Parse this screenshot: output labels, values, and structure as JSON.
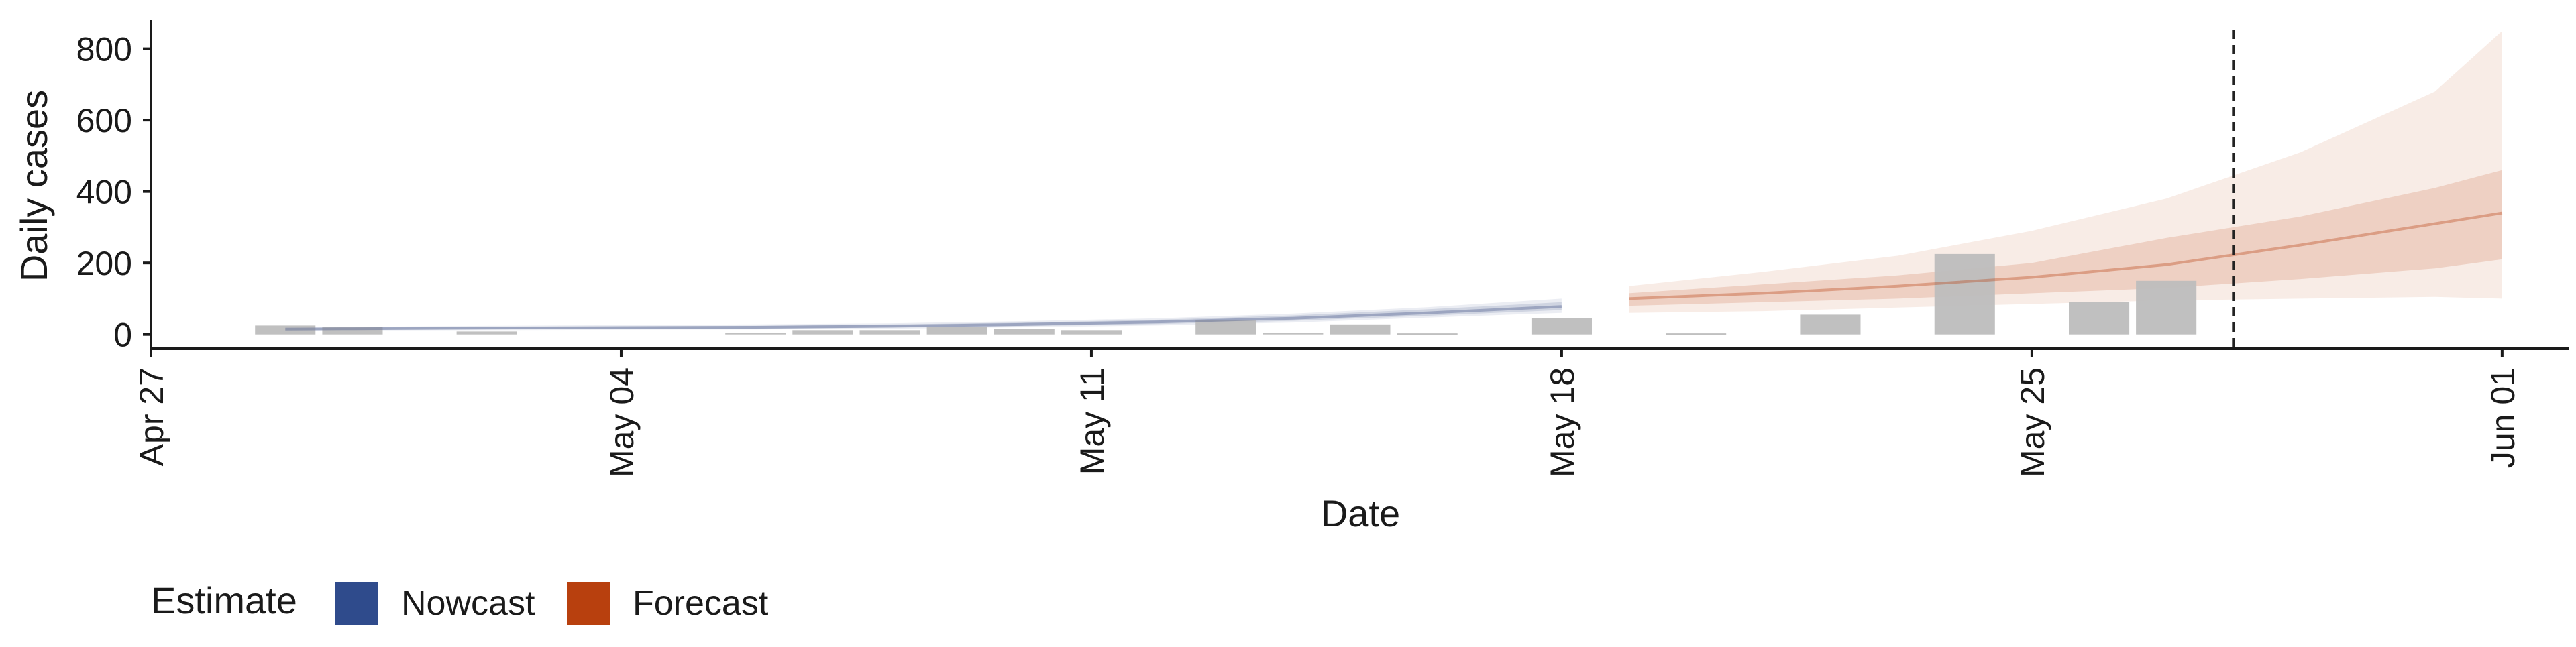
{
  "chart_data": {
    "type": "bar",
    "ylabel": "Daily cases",
    "xlabel": "Date",
    "ylim": [
      -40,
      880
    ],
    "xlim": [
      "2020-04-27",
      "2020-06-02"
    ],
    "yticks": [
      0,
      200,
      400,
      600,
      800
    ],
    "xticks": [
      {
        "date": "2020-04-27",
        "label": "Apr 27"
      },
      {
        "date": "2020-05-04",
        "label": "May 04"
      },
      {
        "date": "2020-05-11",
        "label": "May 11"
      },
      {
        "date": "2020-05-18",
        "label": "May 18"
      },
      {
        "date": "2020-05-25",
        "label": "May 25"
      },
      {
        "date": "2020-06-01",
        "label": "Jun 01"
      }
    ],
    "reference_line_date": "2020-05-28",
    "grid": false,
    "bars": [
      {
        "date": "2020-04-29",
        "value": 25
      },
      {
        "date": "2020-04-30",
        "value": 20
      },
      {
        "date": "2020-05-02",
        "value": 8
      },
      {
        "date": "2020-05-06",
        "value": 5
      },
      {
        "date": "2020-05-07",
        "value": 12
      },
      {
        "date": "2020-05-08",
        "value": 12
      },
      {
        "date": "2020-05-09",
        "value": 22
      },
      {
        "date": "2020-05-10",
        "value": 15
      },
      {
        "date": "2020-05-11",
        "value": 12
      },
      {
        "date": "2020-05-13",
        "value": 40
      },
      {
        "date": "2020-05-14",
        "value": 4
      },
      {
        "date": "2020-05-15",
        "value": 28
      },
      {
        "date": "2020-05-16",
        "value": 3
      },
      {
        "date": "2020-05-18",
        "value": 45
      },
      {
        "date": "2020-05-20",
        "value": 3
      },
      {
        "date": "2020-05-22",
        "value": 55
      },
      {
        "date": "2020-05-24",
        "value": 225
      },
      {
        "date": "2020-05-26",
        "value": 90
      },
      {
        "date": "2020-05-27",
        "value": 150
      }
    ],
    "series": [
      {
        "name": "Nowcast",
        "color": "#3c4e85",
        "dates": [
          "2020-04-29",
          "2020-04-30",
          "2020-05-02",
          "2020-05-04",
          "2020-05-06",
          "2020-05-08",
          "2020-05-10",
          "2020-05-12",
          "2020-05-14",
          "2020-05-16",
          "2020-05-18"
        ],
        "median": [
          15,
          16,
          18,
          19,
          20,
          23,
          28,
          35,
          45,
          60,
          78
        ],
        "inner_lower": [
          12,
          13,
          14,
          15,
          16,
          19,
          23,
          29,
          38,
          52,
          68
        ],
        "inner_upper": [
          18,
          19,
          21,
          23,
          24,
          28,
          33,
          41,
          53,
          70,
          90
        ],
        "outer_lower": [
          10,
          11,
          12,
          13,
          14,
          16,
          20,
          25,
          33,
          47,
          60
        ],
        "outer_upper": [
          20,
          21,
          24,
          26,
          28,
          31,
          37,
          45,
          58,
          76,
          100
        ]
      },
      {
        "name": "Forecast",
        "color": "#b8400e",
        "dates": [
          "2020-05-19",
          "2020-05-21",
          "2020-05-23",
          "2020-05-25",
          "2020-05-27",
          "2020-05-29",
          "2020-05-31",
          "2020-06-01"
        ],
        "median": [
          100,
          115,
          135,
          160,
          195,
          250,
          310,
          340
        ],
        "inner_lower": [
          80,
          90,
          100,
          115,
          130,
          155,
          185,
          210
        ],
        "inner_upper": [
          115,
          140,
          165,
          200,
          270,
          330,
          410,
          460
        ],
        "outer_lower": [
          60,
          65,
          75,
          85,
          95,
          100,
          105,
          100
        ],
        "outer_upper": [
          135,
          175,
          220,
          290,
          380,
          510,
          680,
          850
        ]
      }
    ],
    "legend": {
      "title": "Estimate",
      "position": "bottom-left",
      "items": [
        {
          "label": "Nowcast",
          "color": "#2f4b8c"
        },
        {
          "label": "Forecast",
          "color": "#b8400e"
        }
      ]
    },
    "colors": {
      "bars": "#bdbdbd",
      "axis": "#1a1a1a",
      "reference_line": "#222222"
    }
  }
}
